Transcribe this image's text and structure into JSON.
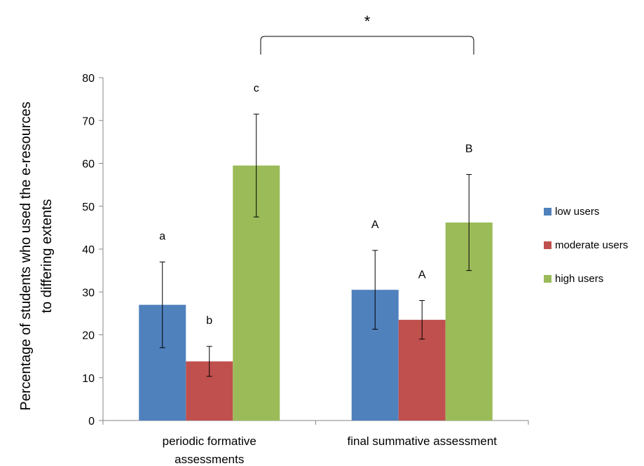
{
  "chart_data": {
    "type": "bar",
    "ylabel_line1": "Percentage of students who used the e-resources",
    "ylabel_line2": "to differing extents",
    "xlabel": "",
    "ylim": [
      0,
      80
    ],
    "yticks": [
      "0",
      "10",
      "20",
      "30",
      "40",
      "50",
      "60",
      "70",
      "80"
    ],
    "categories": [
      {
        "line1": "periodic formative",
        "line2": "assessments"
      },
      {
        "line1": "final summative assessment",
        "line2": ""
      }
    ],
    "series": [
      {
        "name": "low users",
        "color": "#4F81BD",
        "values": [
          27,
          30.5
        ],
        "errors": [
          10,
          9.2
        ]
      },
      {
        "name": "moderate users",
        "color": "#C0504D",
        "values": [
          13.8,
          23.5
        ],
        "errors": [
          3.5,
          4.5
        ]
      },
      {
        "name": "high users",
        "color": "#9BBB59",
        "values": [
          59.5,
          46.2
        ],
        "errors": [
          12,
          11.2
        ]
      }
    ],
    "significance_letters": [
      [
        "a",
        "b",
        "c"
      ],
      [
        "A",
        "A",
        "B"
      ]
    ],
    "significance_marker": "*",
    "legend_position": "right",
    "grid": false
  }
}
